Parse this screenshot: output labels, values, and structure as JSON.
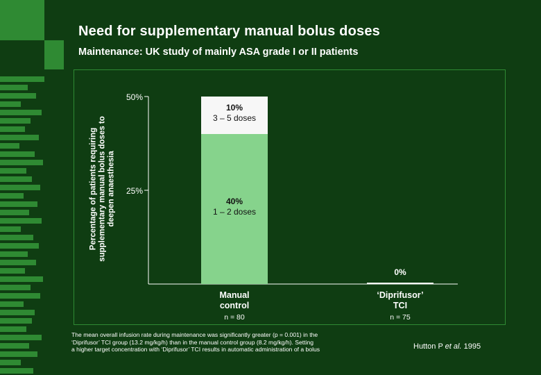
{
  "title": "Need for supplementary manual bolus doses",
  "subtitle": "Maintenance: UK study of mainly ASA grade I or II patients",
  "footnote": [
    "The mean overall infusion rate during maintenance was significantly greater (p = 0.001) in the",
    "‘Diprifusor’ TCI group (13.2 mg/kg/h) than in the manual control group (8.2 mg/kg/h). Setting",
    "a higher target concentration with ‘Diprifusor’ TCI results in automatic administration of a bolus"
  ],
  "citation": {
    "author": "Hutton P ",
    "et_al": "et al.",
    "year": " 1995"
  },
  "colors": {
    "background": "#0f3d12",
    "accent": "#2f8a33",
    "segment_low": "#86d38c",
    "segment_high": "#f7f7f7"
  },
  "chart_data": {
    "type": "bar",
    "stacked": true,
    "ylabel": "Percentage of patients requiring supplementary manual bolus doses to deepen anaesthesia",
    "ylabel_lines": [
      "Percentage of patients requiring",
      "supplementary manual bolus doses to",
      "deepen anaesthesia"
    ],
    "yticks": [
      "50%",
      "25%"
    ],
    "ytick_values": [
      50,
      25
    ],
    "ylim": [
      0,
      50
    ],
    "categories": [
      {
        "label_lines": [
          "Manual",
          "control"
        ],
        "n": "n = 80"
      },
      {
        "label_lines": [
          "‘Diprifusor’",
          "TCI"
        ],
        "n": "n = 75"
      }
    ],
    "series": [
      {
        "values": [
          40,
          0
        ],
        "labels": [
          [
            "40%",
            "1 – 2 doses"
          ],
          [
            "0%"
          ]
        ]
      },
      {
        "values": [
          10,
          0
        ],
        "labels": [
          [
            "10%",
            "3 – 5 doses"
          ],
          null
        ]
      }
    ]
  }
}
